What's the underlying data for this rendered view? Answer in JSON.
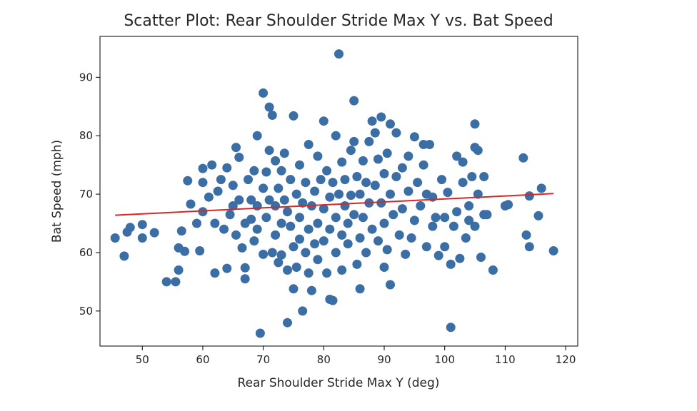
{
  "chart_data": {
    "type": "scatter",
    "title": "Scatter Plot: Rear Shoulder Stride Max Y vs. Bat Speed",
    "xlabel": "Rear Shoulder Stride Max Y (deg)",
    "ylabel": "Bat Speed (mph)",
    "xlim": [
      43,
      122
    ],
    "ylim": [
      44,
      97
    ],
    "x_ticks": [
      50,
      60,
      70,
      80,
      90,
      100,
      110,
      120
    ],
    "y_ticks": [
      50,
      60,
      70,
      80,
      90
    ],
    "grid": false,
    "point_color": "#3a6ea5",
    "trend_color": "#d62728",
    "trendline": {
      "x": [
        45.5,
        118
      ],
      "y": [
        66.4,
        70.1
      ]
    },
    "points": [
      [
        45.5,
        62.5
      ],
      [
        47,
        59.4
      ],
      [
        47.5,
        63.5
      ],
      [
        48,
        64.3
      ],
      [
        50,
        62.5
      ],
      [
        50,
        64.8
      ],
      [
        52,
        63.4
      ],
      [
        54,
        55
      ],
      [
        55.5,
        55
      ],
      [
        56,
        57
      ],
      [
        56,
        60.8
      ],
      [
        56.5,
        63.7
      ],
      [
        57,
        60.2
      ],
      [
        57.5,
        72.3
      ],
      [
        58,
        68.3
      ],
      [
        59,
        65
      ],
      [
        59.5,
        60.3
      ],
      [
        60,
        67
      ],
      [
        60,
        74.4
      ],
      [
        60,
        72
      ],
      [
        61,
        69.5
      ],
      [
        61.5,
        75
      ],
      [
        62,
        65
      ],
      [
        62,
        56.5
      ],
      [
        62.5,
        70.5
      ],
      [
        63,
        72.5
      ],
      [
        63.5,
        64
      ],
      [
        64,
        57.3
      ],
      [
        64,
        74.5
      ],
      [
        64.5,
        66.5
      ],
      [
        65,
        71.5
      ],
      [
        65,
        68
      ],
      [
        65.5,
        63
      ],
      [
        65.5,
        78
      ],
      [
        66,
        76.3
      ],
      [
        66,
        69
      ],
      [
        66.5,
        60.8
      ],
      [
        67,
        65
      ],
      [
        67,
        55.5
      ],
      [
        67,
        57.4
      ],
      [
        67.5,
        72.5
      ],
      [
        68,
        69
      ],
      [
        68,
        65.7
      ],
      [
        68.5,
        62
      ],
      [
        68.5,
        74
      ],
      [
        69,
        80
      ],
      [
        69,
        68
      ],
      [
        69,
        64
      ],
      [
        69.5,
        46.2
      ],
      [
        70,
        71
      ],
      [
        70,
        59.7
      ],
      [
        70,
        87.3
      ],
      [
        70.5,
        66
      ],
      [
        70.5,
        73.8
      ],
      [
        71,
        84.9
      ],
      [
        71,
        77.5
      ],
      [
        71,
        69
      ],
      [
        71.5,
        83.5
      ],
      [
        71.5,
        60
      ],
      [
        72,
        75.7
      ],
      [
        72,
        68
      ],
      [
        72,
        63
      ],
      [
        72.5,
        58.3
      ],
      [
        72.5,
        71
      ],
      [
        73,
        74
      ],
      [
        73,
        65
      ],
      [
        73,
        59.6
      ],
      [
        73.5,
        77
      ],
      [
        73.5,
        69
      ],
      [
        74,
        57
      ],
      [
        74,
        48
      ],
      [
        74,
        67
      ],
      [
        74.5,
        72.5
      ],
      [
        74.5,
        64.5
      ],
      [
        75,
        83.4
      ],
      [
        75,
        61
      ],
      [
        75,
        53.8
      ],
      [
        75.5,
        70
      ],
      [
        75.5,
        57.5
      ],
      [
        76,
        75
      ],
      [
        76,
        66
      ],
      [
        76,
        62.3
      ],
      [
        76.5,
        50
      ],
      [
        76.5,
        68.5
      ],
      [
        77,
        60
      ],
      [
        77,
        72
      ],
      [
        77.5,
        78.5
      ],
      [
        77.5,
        64
      ],
      [
        77.5,
        56.5
      ],
      [
        78,
        53.5
      ],
      [
        78,
        68
      ],
      [
        78.5,
        70.5
      ],
      [
        78.5,
        61.5
      ],
      [
        79,
        76.5
      ],
      [
        79,
        65
      ],
      [
        79,
        58.8
      ],
      [
        79.5,
        72.5
      ],
      [
        80,
        82.5
      ],
      [
        80,
        67.5
      ],
      [
        80,
        62
      ],
      [
        80.5,
        56.5
      ],
      [
        80.5,
        74
      ],
      [
        81,
        69.5
      ],
      [
        81,
        52
      ],
      [
        81,
        64
      ],
      [
        81.5,
        51.8
      ],
      [
        81.5,
        72
      ],
      [
        82,
        80
      ],
      [
        82,
        66
      ],
      [
        82,
        60
      ],
      [
        82.5,
        94
      ],
      [
        82.5,
        70
      ],
      [
        83,
        75.5
      ],
      [
        83,
        63
      ],
      [
        83,
        57
      ],
      [
        83.5,
        68
      ],
      [
        83.5,
        72.5
      ],
      [
        84,
        65
      ],
      [
        84,
        61.5
      ],
      [
        84.5,
        77.5
      ],
      [
        84.5,
        69.8
      ],
      [
        85,
        86
      ],
      [
        85,
        79
      ],
      [
        85,
        66.5
      ],
      [
        85.5,
        73
      ],
      [
        85.5,
        58
      ],
      [
        86,
        62.5
      ],
      [
        86,
        70
      ],
      [
        86,
        53.8
      ],
      [
        86.5,
        75.7
      ],
      [
        86.5,
        66
      ],
      [
        87,
        72
      ],
      [
        87,
        60
      ],
      [
        87.5,
        79
      ],
      [
        87.5,
        68.5
      ],
      [
        88,
        82.5
      ],
      [
        88,
        64
      ],
      [
        88.5,
        80.5
      ],
      [
        88.5,
        71.5
      ],
      [
        89,
        76
      ],
      [
        89,
        62
      ],
      [
        89.5,
        83.2
      ],
      [
        89.5,
        68.5
      ],
      [
        90,
        73.5
      ],
      [
        90,
        57.5
      ],
      [
        90,
        65
      ],
      [
        90.5,
        77
      ],
      [
        90.5,
        60.5
      ],
      [
        91,
        82
      ],
      [
        91,
        54.5
      ],
      [
        91,
        70
      ],
      [
        91.5,
        66.5
      ],
      [
        92,
        80.5
      ],
      [
        92,
        73
      ],
      [
        92.5,
        63
      ],
      [
        93,
        74.5
      ],
      [
        93,
        67.5
      ],
      [
        93.5,
        59.7
      ],
      [
        94,
        76.5
      ],
      [
        94,
        70.5
      ],
      [
        94.5,
        62.5
      ],
      [
        95,
        79.8
      ],
      [
        95,
        65.5
      ],
      [
        95.5,
        72
      ],
      [
        96,
        68
      ],
      [
        96.5,
        78.5
      ],
      [
        96.5,
        75
      ],
      [
        97,
        70
      ],
      [
        97,
        61
      ],
      [
        97.5,
        78.5
      ],
      [
        98,
        64.5
      ],
      [
        98,
        69.5
      ],
      [
        98.5,
        66
      ],
      [
        99,
        59.5
      ],
      [
        99.5,
        72.5
      ],
      [
        100,
        66
      ],
      [
        100,
        61
      ],
      [
        100.5,
        70.3
      ],
      [
        101,
        58
      ],
      [
        101,
        47.2
      ],
      [
        101.5,
        64.5
      ],
      [
        102,
        76.5
      ],
      [
        102,
        67
      ],
      [
        102.5,
        59
      ],
      [
        103,
        72
      ],
      [
        103,
        75.5
      ],
      [
        103.5,
        62.5
      ],
      [
        104,
        65.5
      ],
      [
        104,
        68
      ],
      [
        104.5,
        73
      ],
      [
        105,
        78
      ],
      [
        105,
        82
      ],
      [
        105,
        64.5
      ],
      [
        105.5,
        77.5
      ],
      [
        105.5,
        70
      ],
      [
        106,
        59.2
      ],
      [
        106.5,
        66.5
      ],
      [
        106.5,
        73
      ],
      [
        107,
        66.5
      ],
      [
        108,
        57
      ],
      [
        110,
        68
      ],
      [
        110.5,
        68.2
      ],
      [
        113,
        76.2
      ],
      [
        113.5,
        63
      ],
      [
        114,
        61
      ],
      [
        114,
        69.7
      ],
      [
        115.5,
        66.3
      ],
      [
        116,
        71
      ],
      [
        118,
        60.3
      ]
    ]
  }
}
